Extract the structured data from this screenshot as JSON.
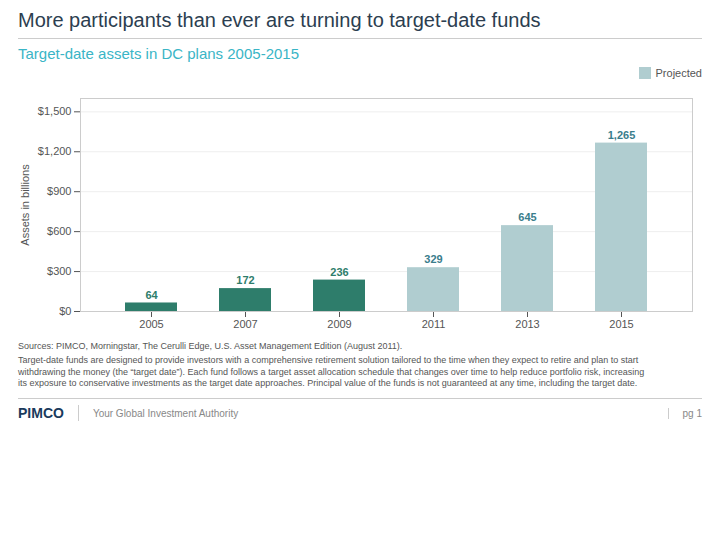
{
  "chart_data": {
    "type": "bar",
    "title": "More participants than ever are turning to target-date funds",
    "subtitle": "Target-date assets in DC plans 2005-2015",
    "categories": [
      "2005",
      "2007",
      "2009",
      "2011",
      "2013",
      "2015"
    ],
    "values": [
      64,
      172,
      236,
      329,
      645,
      1265
    ],
    "value_labels": [
      "64",
      "172",
      "236",
      "329",
      "645",
      "1,265"
    ],
    "data_labels": true,
    "colors": [
      "#2e7d6b",
      "#2e7d6b",
      "#2e7d6b",
      "#b0cdd0",
      "#b0cdd0",
      "#b0cdd0"
    ],
    "value_label_colors": [
      "#2e7d6b",
      "#2e7d6b",
      "#2e7d6b",
      "#3a7d8c",
      "#3a7d8c",
      "#3a7d8c"
    ],
    "ylabel": "Assets in billions",
    "ylim": [
      0,
      1600
    ],
    "yticks": [
      {
        "value": 0,
        "label": "$0"
      },
      {
        "value": 300,
        "label": "$300"
      },
      {
        "value": 600,
        "label": "$600"
      },
      {
        "value": 900,
        "label": "$900"
      },
      {
        "value": 1200,
        "label": "$1,200"
      },
      {
        "value": 1500,
        "label": "$1,500"
      }
    ],
    "grid": true,
    "legend": "upper right",
    "legend_label": "Projected",
    "legend_color": "#b0cdd0",
    "subtitle_color": "#3ab5c6",
    "source": "Sources: PIMCO, Morningstar, The Cerulli Edge, U.S. Asset Management Edition (August 2011).",
    "note": "Target-date funds are designed to provide investors with a comprehensive retirement solution tailored to the time when they expect to retire and plan to start\nwithdrawing the money (the “target date”). Each fund follows a target asset allocation schedule that changes over time to help reduce portfolio risk, increasing\nits exposure to conservative investments as the target date approaches. Principal value of the funds is not guaranteed at any time, including the target date.",
    "footer": [
      "PIMCO",
      "Your Global Investment Authority",
      "pg 1"
    ]
  }
}
